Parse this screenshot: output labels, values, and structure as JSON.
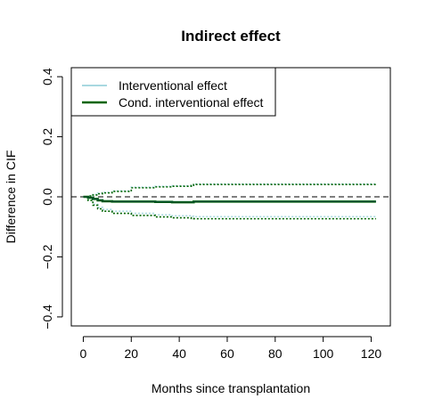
{
  "chart_data": {
    "type": "line",
    "title": "Indirect effect",
    "xlabel": "Months since transplantation",
    "ylabel": "Difference in CIF",
    "xlim": [
      -5,
      128
    ],
    "ylim": [
      -0.43,
      0.43
    ],
    "xticks": [
      0,
      20,
      40,
      60,
      80,
      100,
      120
    ],
    "xtick_labels": [
      "0",
      "20",
      "40",
      "60",
      "80",
      "100",
      "120"
    ],
    "yticks": [
      -0.4,
      -0.2,
      0.0,
      0.2,
      0.4
    ],
    "ytick_labels": [
      "−0.4",
      "−0.2",
      "0.0",
      "0.2",
      "0.4"
    ],
    "reference_line": {
      "y": 0,
      "style": "dashed",
      "color": "#000000"
    },
    "legend": {
      "position": "top-left",
      "entries": [
        {
          "label": "Interventional effect",
          "color": "#a8d8e0"
        },
        {
          "label": "Cond. interventional effect",
          "color": "#006400"
        }
      ]
    },
    "series": [
      {
        "name": "Interventional effect",
        "color": "#a8d8e0",
        "x": [
          0,
          2,
          4,
          6,
          8,
          12,
          20,
          30,
          37,
          45,
          46,
          60,
          80,
          100,
          122
        ],
        "y": [
          0,
          -0.002,
          -0.006,
          -0.01,
          -0.014,
          -0.015,
          -0.015,
          -0.016,
          -0.017,
          -0.017,
          -0.015,
          -0.015,
          -0.015,
          -0.015,
          -0.015
        ],
        "lower": [
          0,
          -0.01,
          -0.025,
          -0.035,
          -0.042,
          -0.048,
          -0.055,
          -0.06,
          -0.063,
          -0.065,
          -0.066,
          -0.066,
          -0.066,
          -0.066,
          -0.066
        ],
        "upper": [
          0,
          0.004,
          0.008,
          0.012,
          0.015,
          0.02,
          0.032,
          0.035,
          0.037,
          0.04,
          0.043,
          0.043,
          0.043,
          0.043,
          0.043
        ]
      },
      {
        "name": "Cond. interventional effect",
        "color": "#006400",
        "x": [
          0,
          2,
          4,
          6,
          8,
          12,
          20,
          30,
          37,
          45,
          46,
          60,
          80,
          100,
          122
        ],
        "y": [
          0,
          -0.003,
          -0.007,
          -0.012,
          -0.015,
          -0.016,
          -0.016,
          -0.017,
          -0.018,
          -0.018,
          -0.016,
          -0.016,
          -0.016,
          -0.016,
          -0.016
        ],
        "lower": [
          0,
          -0.012,
          -0.028,
          -0.04,
          -0.048,
          -0.055,
          -0.062,
          -0.067,
          -0.07,
          -0.072,
          -0.073,
          -0.073,
          -0.073,
          -0.073,
          -0.073
        ],
        "upper": [
          0,
          0.003,
          0.006,
          0.01,
          0.013,
          0.018,
          0.03,
          0.033,
          0.035,
          0.038,
          0.041,
          0.041,
          0.041,
          0.041,
          0.041
        ]
      }
    ]
  }
}
